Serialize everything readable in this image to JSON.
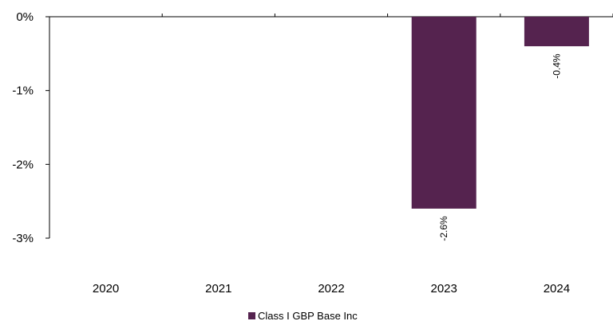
{
  "chart_data": {
    "type": "bar",
    "categories": [
      "2020",
      "2021",
      "2022",
      "2023",
      "2024"
    ],
    "series": [
      {
        "name": "Class I GBP Base Inc",
        "values": [
          null,
          null,
          null,
          -2.6,
          -0.4
        ],
        "data_labels": [
          "",
          "",
          "",
          "-2.6%",
          "-0.4%"
        ],
        "color": "#55234f"
      }
    ],
    "ylim": [
      -3,
      0
    ],
    "y_ticks": [
      0,
      -1,
      -2,
      -3
    ],
    "y_tick_labels": [
      "0%",
      "-1%",
      "-2%",
      "-3%"
    ],
    "x_tick_labels": [
      "2020",
      "2021",
      "2022",
      "2023",
      "2024"
    ],
    "xlabel": "",
    "ylabel": "",
    "title": "",
    "grid": false,
    "legend": "bottom-center"
  }
}
